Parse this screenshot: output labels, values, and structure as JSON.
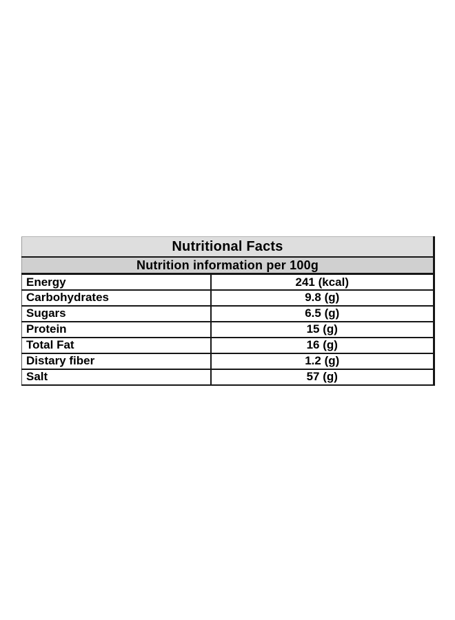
{
  "page": {
    "background": "#ffffff"
  },
  "table": {
    "title": "Nutritional Facts",
    "subtitle": "Nutrition information per 100g",
    "rows": [
      {
        "label": "Energy",
        "value": "241 (kcal)"
      },
      {
        "label": "Carbohydrates",
        "value": "9.8 (g)"
      },
      {
        "label": "Sugars",
        "value": "6.5 (g)"
      },
      {
        "label": "Protein",
        "value": "15 (g)"
      },
      {
        "label": "Total Fat",
        "value": "16 (g)"
      },
      {
        "label": "Distary fiber",
        "value": "1.2 (g)"
      },
      {
        "label": "Salt",
        "value": "57 (g)"
      }
    ],
    "colors": {
      "title_background": "#dedede",
      "subtitle_background": "#d0d0d0",
      "row_background": "#ffffff",
      "border": "#161616",
      "text": "#000000",
      "page_background": "#ffffff"
    }
  }
}
